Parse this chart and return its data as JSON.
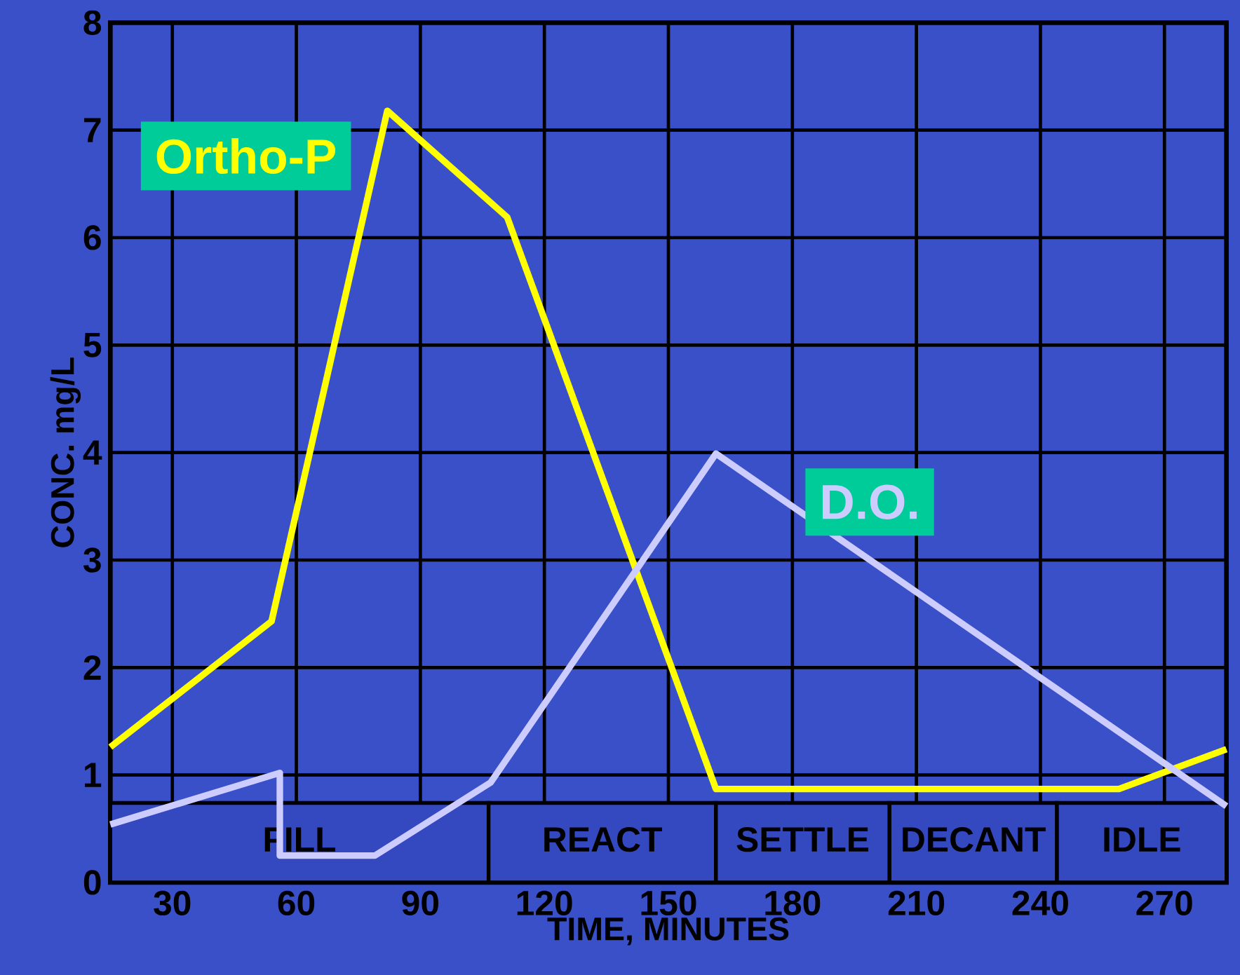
{
  "chart_data": {
    "type": "line",
    "xlabel": "TIME, MINUTES",
    "ylabel": "CONC. mg/L",
    "xlim": [
      15,
      285
    ],
    "ylim": [
      0,
      8
    ],
    "xticks": [
      30,
      60,
      90,
      120,
      150,
      180,
      210,
      240,
      270
    ],
    "yticks": [
      0,
      1,
      2,
      3,
      4,
      5,
      6,
      7,
      8
    ],
    "grid": true,
    "legend": false,
    "marker": "none",
    "line_style": "solid",
    "series": [
      {
        "name": "Ortho-P",
        "color": "#ffff00",
        "x": [
          15,
          54,
          82,
          111,
          161.5,
          259,
          285
        ],
        "values": [
          1.26,
          2.43,
          7.18,
          6.19,
          0.87,
          0.87,
          1.24
        ]
      },
      {
        "name": "D.O.",
        "color": "#ccccff",
        "x": [
          15,
          56,
          56,
          79,
          107,
          161.5,
          285
        ],
        "values": [
          0.54,
          1.02,
          0.25,
          0.25,
          0.93,
          3.99,
          0.71
        ]
      }
    ],
    "bands": [
      {
        "axis": "x",
        "from": 15,
        "to": 106.5,
        "label": "FILL",
        "color": "#3448c0"
      },
      {
        "axis": "x",
        "from": 106.5,
        "to": 161.5,
        "label": "REACT",
        "color": "#3448c0"
      },
      {
        "axis": "x",
        "from": 161.5,
        "to": 203.5,
        "label": "SETTLE",
        "color": "#3448c0"
      },
      {
        "axis": "x",
        "from": 203.5,
        "to": 244,
        "label": "DECANT",
        "color": "#3448c0"
      },
      {
        "axis": "x",
        "from": 244,
        "to": 285,
        "label": "IDLE",
        "color": "#3448c0"
      }
    ]
  }
}
